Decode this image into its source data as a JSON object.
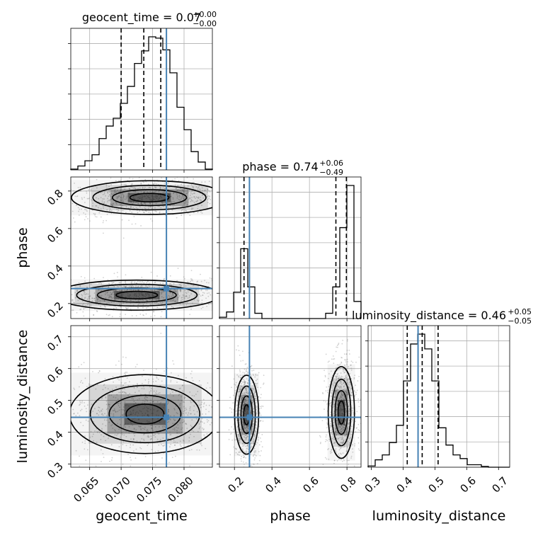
{
  "chart_data": {
    "type": "corner",
    "parameters": [
      {
        "name": "geocent_time",
        "xlabel": "geocent_time",
        "title_main": "geocent_time = 0.07",
        "title_sup": "+0.00",
        "title_sub": "−0.00",
        "range": [
          0.062,
          0.0845
        ],
        "ticks": [
          0.065,
          0.07,
          0.075,
          0.08
        ],
        "tick_labels": [
          "0.065",
          "0.070",
          "0.075",
          "0.080"
        ],
        "truth": 0.0772,
        "quantiles": [
          0.07,
          0.0736,
          0.0763
        ],
        "hist_edges_start": 0.062,
        "hist_bin_width": 0.001125,
        "hist_counts": [
          0.3,
          1.5,
          3.5,
          5.8,
          12.0,
          16.8,
          19.8,
          25.5,
          32.0,
          40.8,
          45.6,
          51.0,
          50.5,
          46.0,
          37.2,
          24.0,
          15.4,
          7.0,
          3.0,
          0.3
        ]
      },
      {
        "name": "phase",
        "xlabel": "phase",
        "ylabel": "phase",
        "title_main": "phase = 0.74",
        "title_sup": "+0.06",
        "title_sub": "−0.49",
        "range": [
          0.12,
          0.875
        ],
        "ticks": [
          0.2,
          0.4,
          0.6,
          0.8
        ],
        "tick_labels": [
          "0.2",
          "0.4",
          "0.6",
          "0.8"
        ],
        "truth": 0.28,
        "quantiles": [
          0.251,
          0.741,
          0.797
        ],
        "hist_edges_start": 0.12,
        "hist_bin_width": 0.03775,
        "hist_counts": [
          0.5,
          2.5,
          10.0,
          26.5,
          12.0,
          2.0,
          0.0,
          0.0,
          0.0,
          0.0,
          0.0,
          0.0,
          0.0,
          0.0,
          0.0,
          2.0,
          12.0,
          34.5,
          50.5,
          6.5
        ]
      },
      {
        "name": "luminosity_distance",
        "xlabel": "luminosity_distance",
        "ylabel": "luminosity_distance",
        "title_main": "luminosity_distance = 0.46",
        "title_sup": "+0.05",
        "title_sub": "−0.05",
        "range": [
          0.29,
          0.735
        ],
        "ticks": [
          0.3,
          0.4,
          0.5,
          0.6,
          0.7
        ],
        "tick_labels": [
          "0.3",
          "0.4",
          "0.5",
          "0.6",
          "0.7"
        ],
        "truth": 0.447,
        "quantiles": [
          0.413,
          0.46,
          0.51
        ],
        "hist_edges_start": 0.29,
        "hist_bin_width": 0.02225,
        "hist_counts": [
          0.5,
          3.0,
          5.0,
          10.0,
          17.0,
          35.0,
          50.0,
          54.0,
          48.0,
          35.0,
          16.0,
          9.0,
          5.0,
          3.5,
          1.0,
          1.0,
          0.3,
          0.0,
          0.0,
          0.0
        ]
      }
    ],
    "pairs": [
      {
        "x": "geocent_time",
        "y": "phase",
        "modes": [
          {
            "cx": 0.0745,
            "cy": 0.765,
            "rx": 0.0062,
            "ry": 0.045,
            "slope": 0.012
          },
          {
            "cx": 0.0725,
            "cy": 0.245,
            "rx": 0.0066,
            "ry": 0.04,
            "slope": 0.009
          }
        ]
      },
      {
        "x": "geocent_time",
        "y": "luminosity_distance",
        "modes": [
          {
            "cx": 0.0738,
            "cy": 0.457,
            "rx": 0.006,
            "ry": 0.062,
            "slope": -0.004
          }
        ]
      },
      {
        "x": "phase",
        "y": "luminosity_distance",
        "modes": [
          {
            "cx": 0.77,
            "cy": 0.462,
            "rx": 0.035,
            "ry": 0.072,
            "slope": 0.0
          },
          {
            "cx": 0.265,
            "cy": 0.455,
            "rx": 0.032,
            "ry": 0.062,
            "slope": 0.0
          }
        ]
      }
    ],
    "colors": {
      "truth": "#4682b4",
      "quantile": "#000000",
      "hist": "#000000",
      "grid": "#b0b0b0",
      "scatter": "#7f7f7f"
    },
    "grid": true
  }
}
